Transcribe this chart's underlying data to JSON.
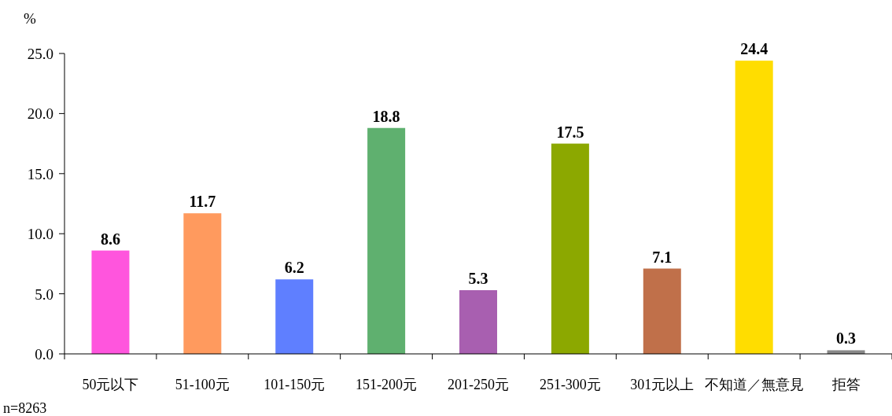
{
  "chart_data": {
    "type": "bar",
    "categories": [
      "50元以下",
      "51-100元",
      "101-150元",
      "151-200元",
      "201-250元",
      "251-300元",
      "301元以上",
      "不知道／無意見",
      "拒答"
    ],
    "values": [
      8.6,
      11.7,
      6.2,
      18.8,
      5.3,
      17.5,
      7.1,
      24.4,
      0.3
    ],
    "colors": [
      "#ff55dd",
      "#ff9a5e",
      "#5f7fff",
      "#5fb06f",
      "#a85fb0",
      "#8ca800",
      "#c0704a",
      "#ffdd00",
      "#888888"
    ],
    "ylabel": "%",
    "ylim": [
      0,
      25
    ],
    "yticks": [
      {
        "value": 0,
        "label": "0.0"
      },
      {
        "value": 5,
        "label": "5.0"
      },
      {
        "value": 10,
        "label": "10.0"
      },
      {
        "value": 15,
        "label": "15.0"
      },
      {
        "value": 20,
        "label": "20.0"
      },
      {
        "value": 25,
        "label": "25.0"
      }
    ],
    "data_labels": true,
    "annotations": [
      "n=8263"
    ]
  }
}
